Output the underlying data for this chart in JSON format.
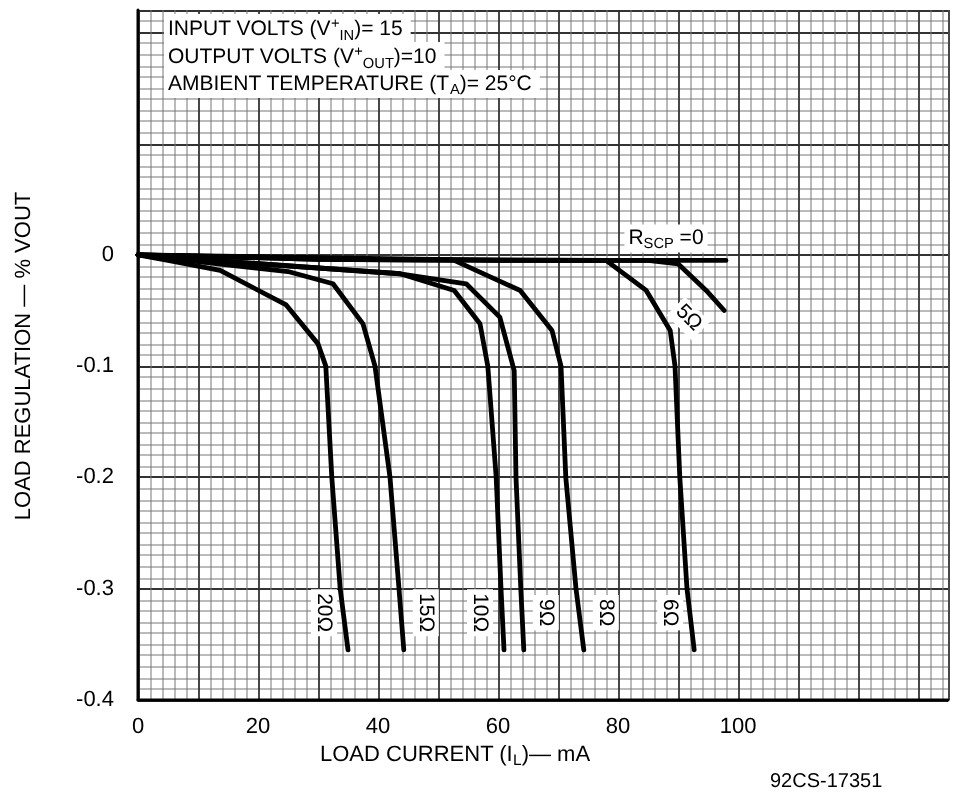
{
  "chart_data": {
    "type": "line",
    "xlabel": "LOAD CURRENT (I$_{L}$)— mA",
    "ylabel": "LOAD REGULATION — % VOUT",
    "annotations": [
      "INPUT VOLTS (V$^{+}$$_{IN}$)= 15",
      "OUTPUT VOLTS (V$^{+}$$_{OUT}$)=10",
      "AMBIENT TEMPERATURE (T$_{A}$)= 25°C",
      "92CS-17351"
    ],
    "xlim": [
      0,
      135
    ],
    "xticks": [
      0,
      20,
      40,
      60,
      80,
      100
    ],
    "ylim": [
      -0.4,
      0.22
    ],
    "yticks": [
      -0.4,
      -0.3,
      -0.2,
      -0.1,
      0
    ],
    "grid": true,
    "line_style": "solid",
    "series": [
      {
        "name": "R$_{SCP}$ =0",
        "color": "#000000",
        "x": [
          0,
          30,
          60,
          98
        ],
        "values": [
          0,
          -0.004,
          -0.005,
          -0.005
        ]
      },
      {
        "name": "5Ω",
        "color": "#000000",
        "x": [
          0,
          60,
          85,
          90,
          94.7,
          97.7
        ],
        "values": [
          0,
          -0.005,
          -0.005,
          -0.008,
          -0.032,
          -0.05
        ]
      },
      {
        "name": "6Ω",
        "color": "#000000",
        "x": [
          0,
          40,
          78,
          84.7,
          88.7,
          89.5,
          90.3,
          91.5,
          92.7
        ],
        "values": [
          0,
          -0.004,
          -0.005,
          -0.032,
          -0.068,
          -0.1,
          -0.2,
          -0.3,
          -0.355
        ]
      },
      {
        "name": "8Ω",
        "color": "#000000",
        "x": [
          0,
          30,
          52.7,
          63.7,
          69,
          70.5,
          71.3,
          73,
          74.3
        ],
        "values": [
          0,
          -0.004,
          -0.005,
          -0.032,
          -0.068,
          -0.1,
          -0.2,
          -0.3,
          -0.355
        ]
      },
      {
        "name": "9Ω",
        "color": "#000000",
        "x": [
          0,
          20,
          43.7,
          54.7,
          60.3,
          62.7,
          63,
          63.8,
          64.3
        ],
        "values": [
          0,
          -0.008,
          -0.017,
          -0.026,
          -0.056,
          -0.104,
          -0.2,
          -0.3,
          -0.355
        ]
      },
      {
        "name": "10Ω",
        "color": "#000000",
        "x": [
          0,
          20,
          43.7,
          52.7,
          57,
          58.3,
          59.7,
          60.5,
          61
        ],
        "values": [
          0,
          -0.008,
          -0.017,
          -0.032,
          -0.062,
          -0.1,
          -0.2,
          -0.3,
          -0.355
        ]
      },
      {
        "name": "15Ω",
        "color": "#000000",
        "x": [
          0,
          10,
          25,
          32.5,
          37.5,
          39.5,
          42,
          43.5,
          44.3
        ],
        "values": [
          0,
          -0.006,
          -0.015,
          -0.026,
          -0.062,
          -0.1,
          -0.2,
          -0.3,
          -0.355
        ]
      },
      {
        "name": "20Ω",
        "color": "#000000",
        "x": [
          0,
          5,
          13.7,
          24.7,
          30,
          31.3,
          32.3,
          33.7,
          35
        ],
        "values": [
          0,
          -0.005,
          -0.014,
          -0.045,
          -0.08,
          -0.1,
          -0.2,
          -0.3,
          -0.355
        ]
      }
    ]
  }
}
